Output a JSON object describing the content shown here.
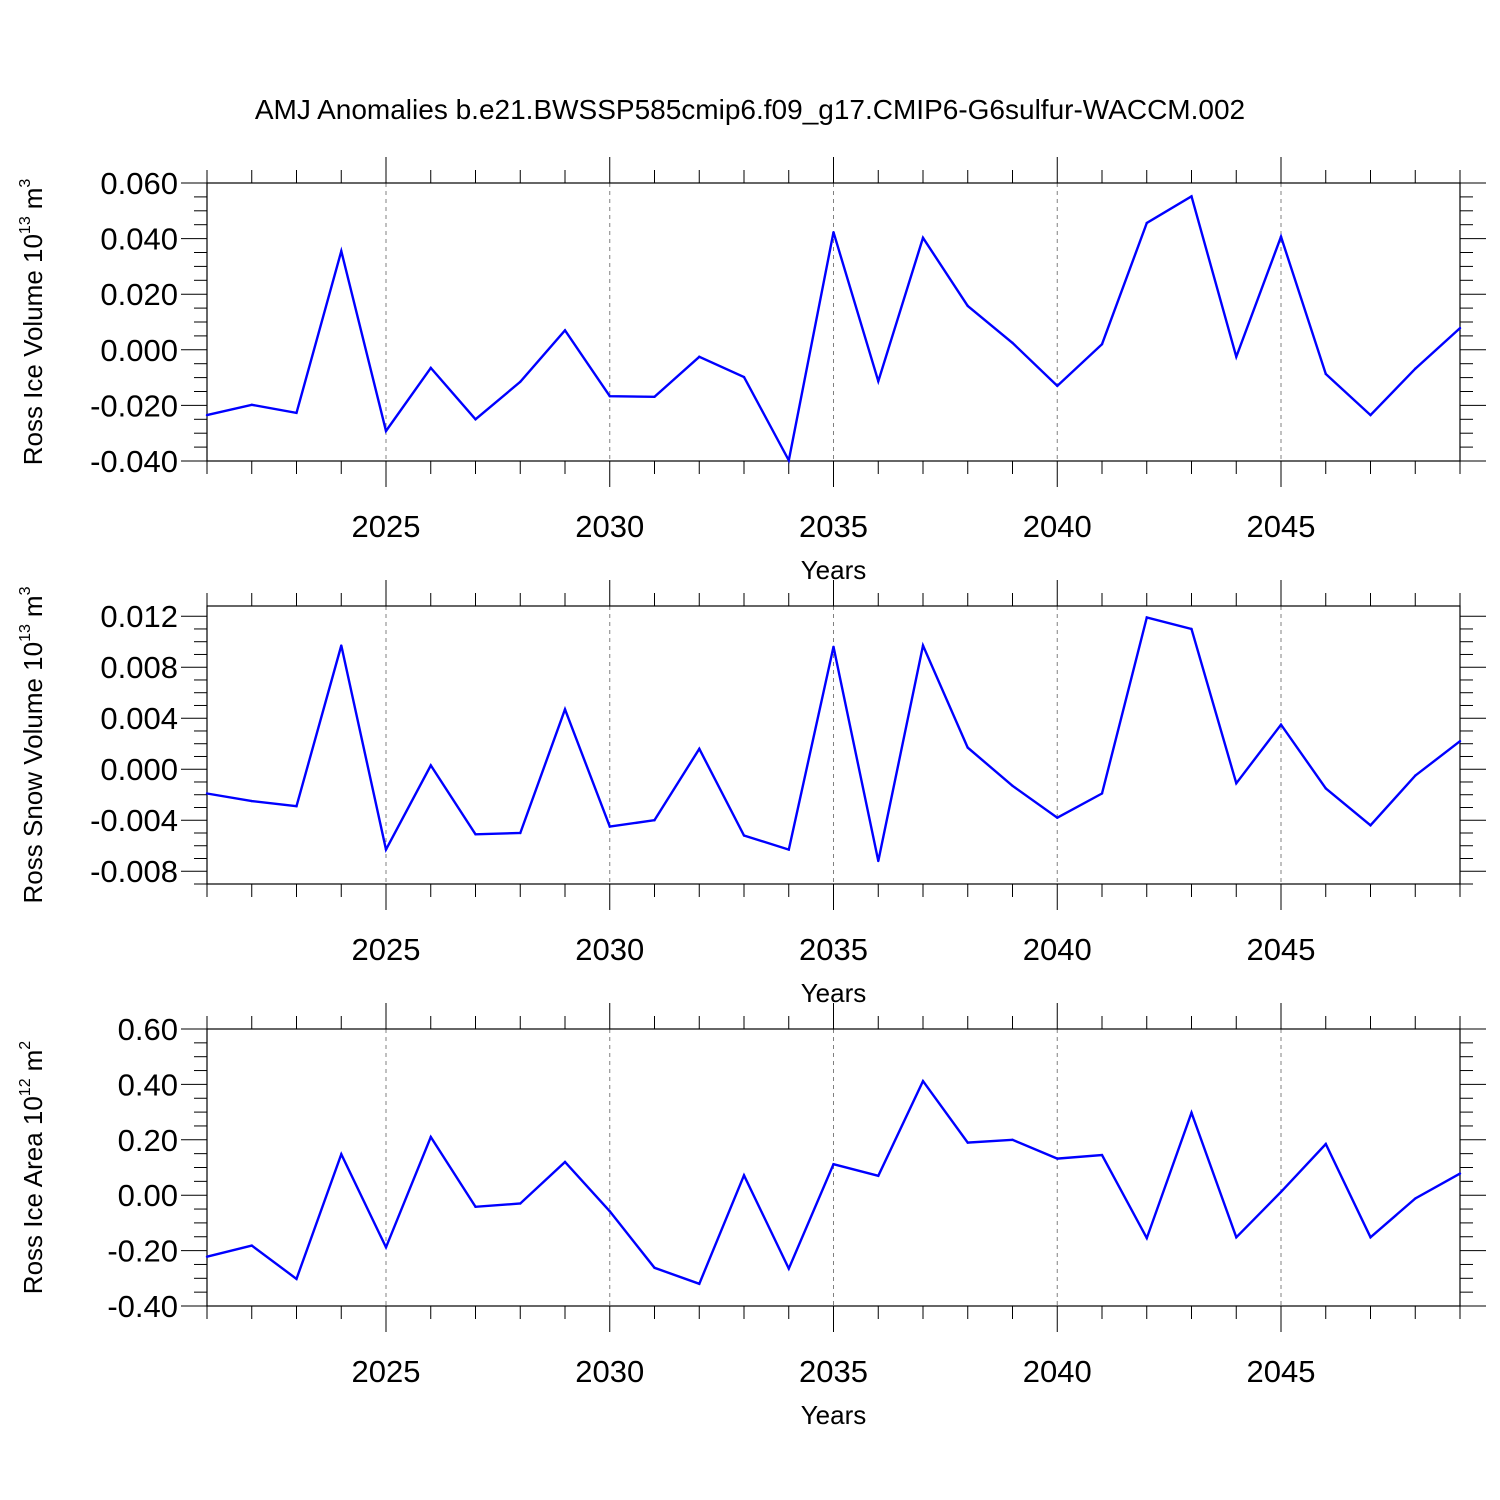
{
  "title": "AMJ Anomalies b.e21.BWSSP585cmip6.f09_g17.CMIP6-G6sulfur-WACCM.002",
  "line_color": "#0000ff",
  "gridline_color": "#808080",
  "chart_data": [
    {
      "type": "line",
      "ylabel": "Ross Ice Volume 10",
      "ylabel_exponent": "13",
      "ylabel_unit": "m",
      "ylabel_unit_exponent": "3",
      "xlabel": "Years",
      "xlim": [
        2021,
        2049
      ],
      "ylim": [
        -0.04,
        0.06
      ],
      "yticks": [
        -0.04,
        -0.02,
        0.0,
        0.02,
        0.04,
        0.06
      ],
      "ytick_labels": [
        "-0.040",
        "-0.020",
        "0.000",
        "0.020",
        "0.040",
        "0.060"
      ],
      "xticks": [
        2025,
        2030,
        2035,
        2040,
        2045
      ],
      "xtick_labels": [
        "2025",
        "2030",
        "2035",
        "2040",
        "2045"
      ],
      "grid": "vertical-dashed",
      "x": [
        2021,
        2022,
        2023,
        2024,
        2025,
        2026,
        2027,
        2028,
        2029,
        2030,
        2031,
        2032,
        2033,
        2034,
        2035,
        2036,
        2037,
        2038,
        2039,
        2040,
        2041,
        2042,
        2043,
        2044,
        2045,
        2046,
        2047,
        2048,
        2049
      ],
      "values": [
        -0.0235,
        -0.0198,
        -0.0227,
        0.0355,
        -0.0292,
        -0.0065,
        -0.025,
        -0.0115,
        0.007,
        -0.0167,
        -0.0169,
        -0.0025,
        -0.0098,
        -0.0398,
        0.0423,
        -0.0113,
        0.0403,
        0.0158,
        0.0025,
        -0.013,
        0.002,
        0.0456,
        0.0552,
        -0.0025,
        0.0407,
        -0.0087,
        -0.0235,
        -0.0068,
        0.0078
      ]
    },
    {
      "type": "line",
      "ylabel": "Ross Snow Volume 10",
      "ylabel_exponent": "13",
      "ylabel_unit": "m",
      "ylabel_unit_exponent": "3",
      "xlabel": "Years",
      "xlim": [
        2021,
        2049
      ],
      "ylim": [
        -0.009,
        0.0128
      ],
      "yticks": [
        -0.008,
        -0.004,
        0.0,
        0.004,
        0.008,
        0.012
      ],
      "ytick_labels": [
        "-0.008",
        "-0.004",
        "0.000",
        "0.004",
        "0.008",
        "0.012"
      ],
      "xticks": [
        2025,
        2030,
        2035,
        2040,
        2045
      ],
      "xtick_labels": [
        "2025",
        "2030",
        "2035",
        "2040",
        "2045"
      ],
      "grid": "vertical-dashed",
      "x": [
        2021,
        2022,
        2023,
        2024,
        2025,
        2026,
        2027,
        2028,
        2029,
        2030,
        2031,
        2032,
        2033,
        2034,
        2035,
        2036,
        2037,
        2038,
        2039,
        2040,
        2041,
        2042,
        2043,
        2044,
        2045,
        2046,
        2047,
        2048,
        2049
      ],
      "values": [
        -0.0019,
        -0.0025,
        -0.0029,
        0.0097,
        -0.0063,
        0.0003,
        -0.0051,
        -0.005,
        0.0047,
        -0.0045,
        -0.004,
        0.0016,
        -0.0052,
        -0.0063,
        0.0096,
        -0.0072,
        0.0097,
        0.0017,
        -0.0013,
        -0.0038,
        -0.0019,
        0.0119,
        0.011,
        -0.0011,
        0.0035,
        -0.0015,
        -0.0044,
        -0.0005,
        0.0022
      ]
    },
    {
      "type": "line",
      "ylabel": "Ross Ice Area 10",
      "ylabel_exponent": "12",
      "ylabel_unit": "m",
      "ylabel_unit_exponent": "2",
      "xlabel": "Years",
      "xlim": [
        2021,
        2049
      ],
      "ylim": [
        -0.4,
        0.6
      ],
      "yticks": [
        -0.4,
        -0.2,
        0.0,
        0.2,
        0.4,
        0.6
      ],
      "ytick_labels": [
        "-0.40",
        "-0.20",
        "0.00",
        "0.20",
        "0.40",
        "0.60"
      ],
      "xticks": [
        2025,
        2030,
        2035,
        2040,
        2045
      ],
      "xtick_labels": [
        "2025",
        "2030",
        "2035",
        "2040",
        "2045"
      ],
      "grid": "vertical-dashed",
      "x": [
        2021,
        2022,
        2023,
        2024,
        2025,
        2026,
        2027,
        2028,
        2029,
        2030,
        2031,
        2032,
        2033,
        2034,
        2035,
        2036,
        2037,
        2038,
        2039,
        2040,
        2041,
        2042,
        2043,
        2044,
        2045,
        2046,
        2047,
        2048,
        2049
      ],
      "values": [
        -0.222,
        -0.182,
        -0.302,
        0.148,
        -0.188,
        0.21,
        -0.042,
        -0.03,
        0.12,
        -0.058,
        -0.262,
        -0.32,
        0.072,
        -0.265,
        0.112,
        0.07,
        0.412,
        0.19,
        0.2,
        0.132,
        0.145,
        -0.155,
        0.298,
        -0.152,
        0.012,
        0.185,
        -0.152,
        -0.012,
        0.078
      ]
    }
  ]
}
